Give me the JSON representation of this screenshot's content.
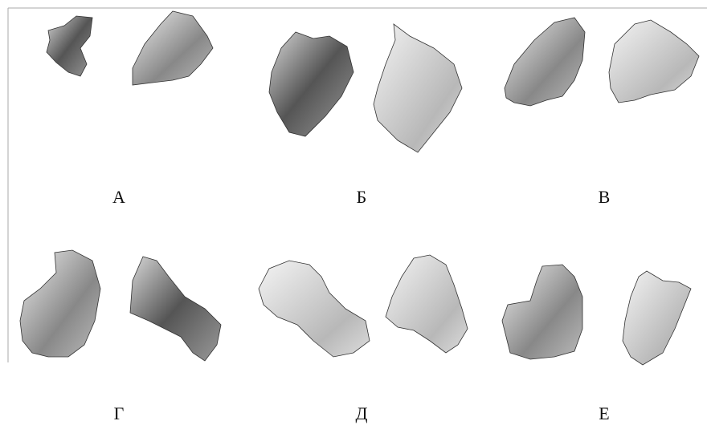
{
  "panels": [
    {
      "label": "А"
    },
    {
      "label": "Б"
    },
    {
      "label": "В"
    },
    {
      "label": "Г"
    },
    {
      "label": "Д"
    },
    {
      "label": "Е"
    }
  ]
}
